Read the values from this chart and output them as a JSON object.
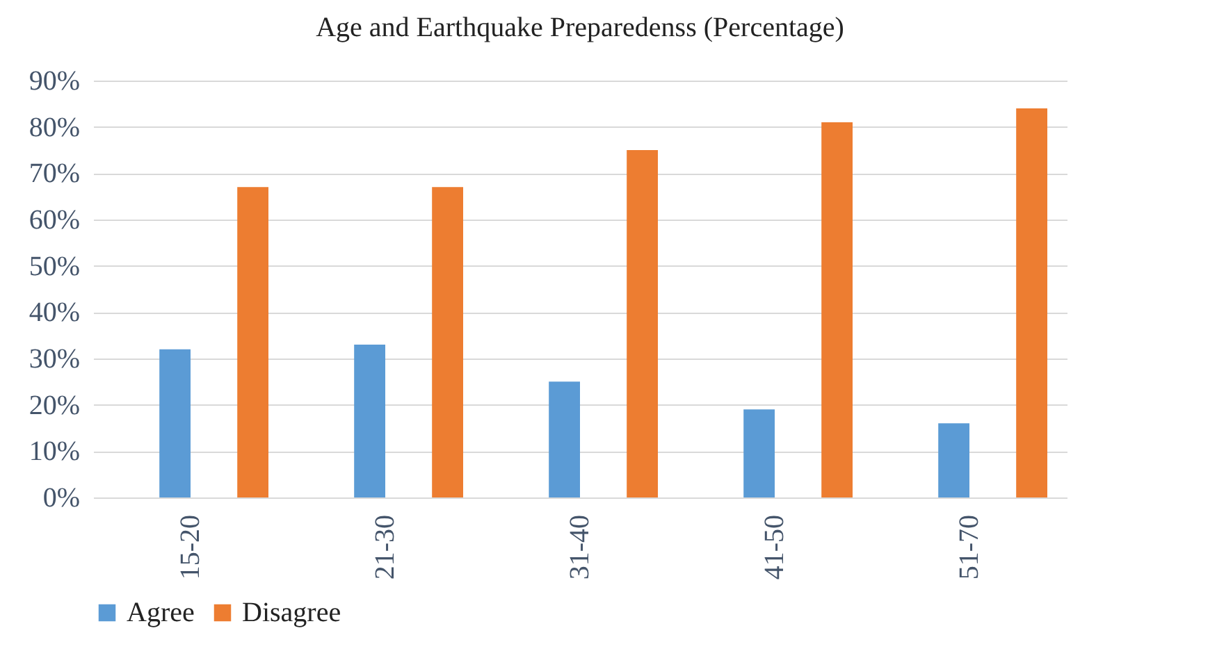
{
  "chart_data": {
    "type": "bar",
    "title": "Age and Earthquake Preparedenss (Percentage)",
    "categories": [
      "15-20",
      "21-30",
      "31-40",
      "41-50",
      "51-70"
    ],
    "series": [
      {
        "name": "Agree",
        "color": "#5b9bd5",
        "values": [
          32,
          33,
          25,
          19,
          16
        ]
      },
      {
        "name": "Disagree",
        "color": "#ed7d31",
        "values": [
          67,
          67,
          75,
          81,
          84
        ]
      }
    ],
    "ylim": [
      0,
      90
    ],
    "yticks": [
      {
        "value": 0,
        "label": "0%"
      },
      {
        "value": 10,
        "label": "10%"
      },
      {
        "value": 20,
        "label": "20%"
      },
      {
        "value": 30,
        "label": "30%"
      },
      {
        "value": 40,
        "label": "40%"
      },
      {
        "value": 50,
        "label": "50%"
      },
      {
        "value": 60,
        "label": "60%"
      },
      {
        "value": 70,
        "label": "70%"
      },
      {
        "value": 80,
        "label": "80%"
      },
      {
        "value": 90,
        "label": "90%"
      }
    ],
    "grid": "y",
    "legend": "bottom"
  }
}
